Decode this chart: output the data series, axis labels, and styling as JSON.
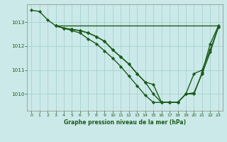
{
  "title": "Graphe pression niveau de la mer (hPa)",
  "background_color": "#cce9e9",
  "grid_color": "#aad4d4",
  "line_color": "#1a5c1a",
  "spine_color": "#888888",
  "xlim": [
    -0.5,
    23.5
  ],
  "ylim": [
    1009.3,
    1013.75
  ],
  "yticks": [
    1010,
    1011,
    1012,
    1013
  ],
  "xticks": [
    0,
    1,
    2,
    3,
    4,
    5,
    6,
    7,
    8,
    9,
    10,
    11,
    12,
    13,
    14,
    15,
    16,
    17,
    18,
    19,
    20,
    21,
    22,
    23
  ],
  "lines": [
    {
      "x": [
        0,
        1,
        2,
        3,
        4,
        5,
        6,
        7,
        8,
        9,
        10,
        11,
        12,
        13,
        14,
        15,
        16,
        17,
        18,
        19,
        20,
        21,
        22,
        23
      ],
      "y": [
        1013.5,
        1013.45,
        1013.1,
        1012.85,
        1012.75,
        1012.7,
        1012.65,
        1012.55,
        1012.4,
        1012.2,
        1011.85,
        1011.55,
        1011.25,
        1010.85,
        1010.5,
        1010.4,
        1009.65,
        1009.65,
        1009.65,
        1010.0,
        1010.85,
        1011.0,
        1011.85,
        1012.8
      ],
      "marker": "D",
      "markersize": 2.2,
      "linewidth": 1.0
    },
    {
      "x": [
        3,
        4,
        5,
        6,
        7,
        8,
        9,
        10,
        11,
        12,
        13,
        14,
        15,
        16,
        17,
        18,
        19,
        20,
        21,
        22,
        23
      ],
      "y": [
        1012.85,
        1012.75,
        1012.7,
        1012.65,
        1012.55,
        1012.4,
        1012.2,
        1011.85,
        1011.55,
        1011.25,
        1010.85,
        1010.5,
        1010.0,
        1009.65,
        1009.65,
        1009.65,
        1010.0,
        1010.05,
        1010.85,
        1011.75,
        1012.8
      ],
      "marker": "D",
      "markersize": 2.2,
      "linewidth": 1.0
    },
    {
      "x": [
        3,
        4,
        5,
        6,
        7,
        8,
        9,
        10,
        11,
        12,
        13,
        14,
        15,
        16,
        17,
        18,
        19,
        20,
        21,
        22,
        23
      ],
      "y": [
        1012.85,
        1012.75,
        1012.65,
        1012.55,
        1012.3,
        1012.1,
        1011.8,
        1011.5,
        1011.15,
        1010.75,
        1010.35,
        1009.95,
        1009.65,
        1009.65,
        1009.65,
        1009.65,
        1010.0,
        1010.0,
        1010.9,
        1012.1,
        1012.85
      ],
      "marker": "D",
      "markersize": 2.2,
      "linewidth": 1.0
    },
    {
      "x": [
        3,
        22,
        23
      ],
      "y": [
        1012.85,
        1012.85,
        1012.85
      ],
      "marker": null,
      "markersize": 0,
      "linewidth": 1.0
    }
  ]
}
